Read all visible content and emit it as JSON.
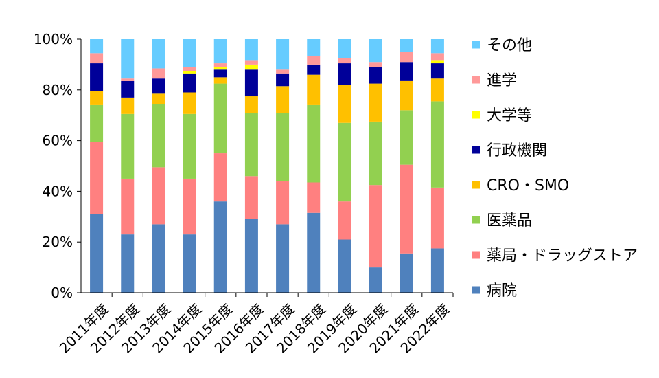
{
  "chart_data": {
    "type": "bar",
    "stacked": true,
    "percent": true,
    "categories": [
      "2011年度",
      "2012年度",
      "2013年度",
      "2014年度",
      "2015年度",
      "2016年度",
      "2017年度",
      "2018年度",
      "2019年度",
      "2020年度",
      "2021年度",
      "2022年度"
    ],
    "y_ticks": [
      "0%",
      "20%",
      "40%",
      "60%",
      "80%",
      "100%"
    ],
    "ylim": [
      0,
      100
    ],
    "grid": false,
    "legend_position": "right",
    "series": [
      {
        "name": "病院",
        "color": "#4F81BD",
        "values": [
          31,
          23,
          27,
          23,
          36,
          29,
          27,
          31.5,
          21,
          10,
          15.5,
          17.5
        ]
      },
      {
        "name": "薬局・ドラッグストア",
        "color": "#FF8080",
        "values": [
          28.5,
          22,
          22.5,
          22,
          19,
          17,
          17,
          12,
          15,
          32.5,
          35,
          24
        ]
      },
      {
        "name": "医薬品",
        "color": "#92D050",
        "values": [
          14.5,
          25.5,
          25,
          25.5,
          27.5,
          25,
          27,
          30.5,
          31,
          25,
          21.5,
          34
        ]
      },
      {
        "name": "CRO・SMO",
        "color": "#FFC000",
        "values": [
          5.5,
          6.5,
          4,
          8.5,
          2.5,
          6.5,
          10.5,
          12,
          15,
          15,
          11.5,
          9
        ]
      },
      {
        "name": "行政機関",
        "color": "#000099",
        "values": [
          11,
          6.5,
          6,
          7.5,
          3,
          10.5,
          5,
          4,
          8.5,
          6.5,
          7.5,
          6
        ]
      },
      {
        "name": "大学等",
        "color": "#FFFF00",
        "values": [
          0,
          0,
          0,
          1,
          1,
          2,
          0,
          0,
          0,
          0,
          0,
          1
        ]
      },
      {
        "name": "進学",
        "color": "#FF9999",
        "values": [
          4,
          1,
          4,
          1.5,
          1.5,
          1.5,
          1.5,
          3.5,
          2,
          2,
          4,
          3
        ]
      },
      {
        "name": "その他",
        "color": "#66CCFF",
        "values": [
          5.5,
          15.5,
          11.5,
          11,
          9.5,
          8.5,
          12,
          6.5,
          7.5,
          9,
          5,
          5.5
        ]
      }
    ]
  }
}
